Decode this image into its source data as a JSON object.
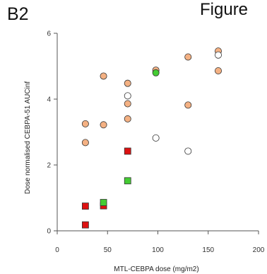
{
  "panel_label": "B2",
  "header_word": "Figure",
  "chart_data": {
    "type": "scatter",
    "title": "",
    "xlabel": "MTL-CEBPA dose (mg/m2)",
    "ylabel": "Dose normalised CEBPA-51 AUCinf",
    "xlim": [
      0,
      200
    ],
    "ylim": [
      0,
      6
    ],
    "x_ticks": [
      0,
      50,
      100,
      150,
      200
    ],
    "y_ticks": [
      0,
      2,
      4,
      6
    ],
    "grid": false,
    "series": [
      {
        "color": "#f4b183",
        "marker": "circle-filled",
        "points": [
          [
            28,
            3.25
          ],
          [
            28,
            2.68
          ],
          [
            46,
            4.7
          ],
          [
            46,
            3.22
          ],
          [
            70,
            4.48
          ],
          [
            70,
            3.86
          ],
          [
            70,
            3.4
          ],
          [
            98,
            4.88
          ],
          [
            130,
            5.28
          ],
          [
            130,
            3.82
          ],
          [
            160,
            5.46
          ],
          [
            160,
            4.86
          ]
        ]
      },
      {
        "color": "#ffffff",
        "marker": "circle-open",
        "points": [
          [
            70,
            4.1
          ],
          [
            98,
            2.82
          ],
          [
            130,
            2.42
          ],
          [
            160,
            5.34
          ]
        ]
      },
      {
        "color": "#44cc33",
        "marker": "circle-filled",
        "points": [
          [
            98,
            4.8
          ]
        ]
      },
      {
        "color": "#dd1111",
        "marker": "square",
        "points": [
          [
            28,
            0.75
          ],
          [
            28,
            0.18
          ],
          [
            46,
            0.76
          ],
          [
            70,
            2.42
          ]
        ]
      },
      {
        "color": "#44cc33",
        "marker": "square",
        "points": [
          [
            46,
            0.86
          ],
          [
            70,
            1.52
          ]
        ]
      }
    ]
  }
}
